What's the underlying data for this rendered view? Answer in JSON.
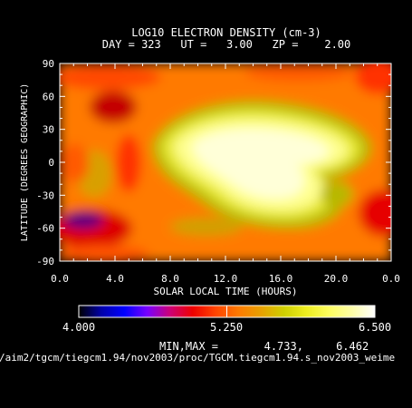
{
  "chart_data": {
    "type": "heatmap",
    "title": "LOG10 ELECTRON DENSITY (cm-3)",
    "subtitle": "DAY = 323   UT =   3.00   ZP =    2.00",
    "xlabel": "SOLAR LOCAL TIME (HOURS)",
    "ylabel": "LATITUDE (DEGREES GEOGRAPHIC)",
    "xlim": [
      0,
      24
    ],
    "ylim": [
      -90,
      90
    ],
    "x_ticks": [
      "0.0",
      "4.0",
      "8.0",
      "12.0",
      "16.0",
      "20.0",
      "0.0"
    ],
    "y_ticks": [
      "90",
      "60",
      "30",
      "0",
      "-30",
      "-60",
      "-90"
    ],
    "colorbar": {
      "min_label": "4.000",
      "mid_label": "5.250",
      "max_label": "6.500",
      "min": 4.0,
      "max": 6.5
    },
    "minmax_text": "MIN,MAX =       4.733,     6.462",
    "min_value": 4.733,
    "max_value": 6.462,
    "source_path": "/aim2/tgcm/tiegcm1.94/nov2003/proc/TGCM.tiegcm1.94.s_nov2003_weime",
    "colormap_colors": [
      "#000000",
      "#0000aa",
      "#0000ff",
      "#7700ff",
      "#cc0077",
      "#ee0000",
      "#ff4400",
      "#ff7a00",
      "#e8a000",
      "#cfcf00",
      "#eeee20",
      "#ffff60",
      "#ffffa8",
      "#ffffff"
    ]
  }
}
